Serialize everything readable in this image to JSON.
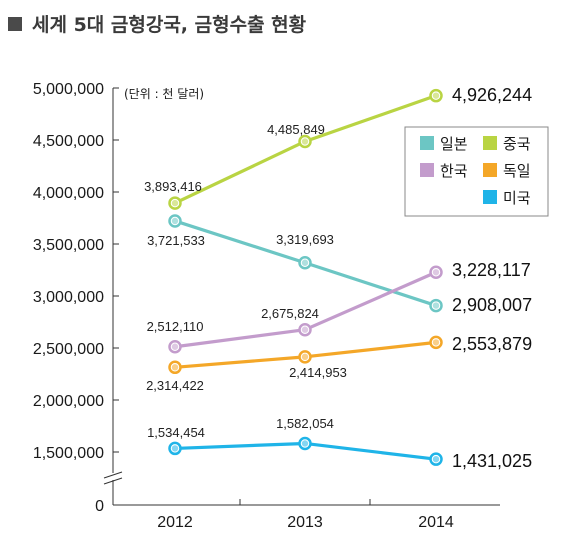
{
  "title": "세계 5대 금형강국, 금형수출 현황",
  "unit_note": "(단위 : 천 달러)",
  "chart_data": {
    "type": "line",
    "categories": [
      "2012",
      "2013",
      "2014"
    ],
    "ylim": [
      0,
      5000000
    ],
    "yticks": [
      "0",
      "1,500,000",
      "2,000,000",
      "2,500,000",
      "3,000,000",
      "3,500,000",
      "4,000,000",
      "4,500,000",
      "5,000,000"
    ],
    "ytick_values": [
      0,
      1500000,
      2000000,
      2500000,
      3000000,
      3500000,
      4000000,
      4500000,
      5000000
    ],
    "axis_break": true,
    "grid": false,
    "legend_position": "top-right",
    "series": [
      {
        "name": "일본",
        "color": "#6cc6c4",
        "values": [
          3721533,
          3319693,
          2908007
        ],
        "labels": [
          "3,721,533",
          "3,319,693",
          "2,908,007"
        ]
      },
      {
        "name": "중국",
        "color": "#b9d443",
        "values": [
          3893416,
          4485849,
          4926244
        ],
        "labels": [
          "3,893,416",
          "4,485,849",
          "4,926,244"
        ]
      },
      {
        "name": "한국",
        "color": "#c39ccc",
        "values": [
          2512110,
          2675824,
          3228117
        ],
        "labels": [
          "2,512,110",
          "2,675,824",
          "3,228,117"
        ]
      },
      {
        "name": "독일",
        "color": "#f4a728",
        "values": [
          2314422,
          2414953,
          2553879
        ],
        "labels": [
          "2,314,422",
          "2,414,953",
          "2,553,879"
        ]
      },
      {
        "name": "미국",
        "color": "#1fb4e8",
        "values": [
          1534454,
          1582054,
          1431025
        ],
        "labels": [
          "1,534,454",
          "1,582,054",
          "1,431,025"
        ]
      }
    ]
  }
}
